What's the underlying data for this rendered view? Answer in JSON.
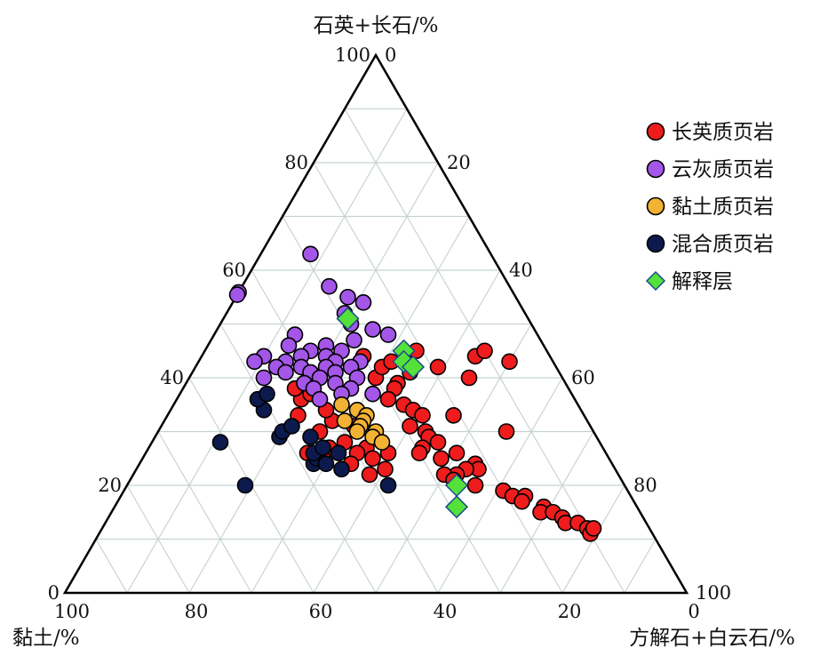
{
  "chart_data": {
    "type": "scatter",
    "subtype": "ternary",
    "axes": {
      "top": {
        "label": "石英+长石/%"
      },
      "left": {
        "label": "黏土/%"
      },
      "right": {
        "label": "方解石+白云石/%"
      }
    },
    "grid": true,
    "grid_step": 10,
    "legend_position": "top-right",
    "ticks": {
      "top_component": [
        "100",
        "80",
        "60",
        "40",
        "20",
        "0"
      ],
      "left_component": [
        "100",
        "80",
        "60",
        "40",
        "20",
        "0"
      ],
      "right_component": [
        "0",
        "20",
        "40",
        "60",
        "80",
        "100"
      ]
    },
    "series": [
      {
        "name": "长英质页岩",
        "color": "#ee1c1c",
        "marker": "circle",
        "points": [
          {
            "qf": 44,
            "cl": 30,
            "carb": 26
          },
          {
            "qf": 39,
            "cl": 27,
            "carb": 34
          },
          {
            "qf": 41,
            "cl": 24,
            "carb": 35
          },
          {
            "qf": 40,
            "cl": 15,
            "carb": 45
          },
          {
            "qf": 33,
            "cl": 21,
            "carb": 46
          },
          {
            "qf": 30,
            "cl": 14,
            "carb": 56
          },
          {
            "qf": 40,
            "cl": 30,
            "carb": 30
          },
          {
            "qf": 38,
            "cl": 28,
            "carb": 34
          },
          {
            "qf": 36,
            "cl": 30,
            "carb": 34
          },
          {
            "qf": 35,
            "cl": 28,
            "carb": 37
          },
          {
            "qf": 34,
            "cl": 27,
            "carb": 39
          },
          {
            "qf": 33,
            "cl": 26,
            "carb": 41
          },
          {
            "qf": 31,
            "cl": 29,
            "carb": 40
          },
          {
            "qf": 30,
            "cl": 27,
            "carb": 43
          },
          {
            "qf": 29,
            "cl": 27,
            "carb": 44
          },
          {
            "qf": 28,
            "cl": 26,
            "carb": 46
          },
          {
            "qf": 27,
            "cl": 29,
            "carb": 44
          },
          {
            "qf": 26,
            "cl": 30,
            "carb": 44
          },
          {
            "qf": 25,
            "cl": 27,
            "carb": 48
          },
          {
            "qf": 26,
            "cl": 24,
            "carb": 50
          },
          {
            "qf": 24,
            "cl": 22,
            "carb": 54
          },
          {
            "qf": 23,
            "cl": 22,
            "carb": 55
          },
          {
            "qf": 23,
            "cl": 24,
            "carb": 53
          },
          {
            "qf": 22,
            "cl": 26,
            "carb": 52
          },
          {
            "qf": 22,
            "cl": 28,
            "carb": 50
          },
          {
            "qf": 21,
            "cl": 27,
            "carb": 52
          },
          {
            "qf": 20,
            "cl": 24,
            "carb": 56
          },
          {
            "qf": 19,
            "cl": 20,
            "carb": 61
          },
          {
            "qf": 18,
            "cl": 19,
            "carb": 63
          },
          {
            "qf": 18,
            "cl": 17,
            "carb": 65
          },
          {
            "qf": 17,
            "cl": 18,
            "carb": 65
          },
          {
            "qf": 16,
            "cl": 15,
            "carb": 69
          },
          {
            "qf": 15,
            "cl": 16,
            "carb": 69
          },
          {
            "qf": 15,
            "cl": 14,
            "carb": 71
          },
          {
            "qf": 14,
            "cl": 13,
            "carb": 73
          },
          {
            "qf": 13,
            "cl": 13,
            "carb": 74
          },
          {
            "qf": 13,
            "cl": 11,
            "carb": 76
          },
          {
            "qf": 12,
            "cl": 10,
            "carb": 78
          },
          {
            "qf": 11,
            "cl": 10,
            "carb": 79
          },
          {
            "qf": 12,
            "cl": 9,
            "carb": 79
          },
          {
            "qf": 26,
            "cl": 35,
            "carb": 39
          },
          {
            "qf": 27,
            "cl": 38,
            "carb": 35
          },
          {
            "qf": 26,
            "cl": 40,
            "carb": 34
          },
          {
            "qf": 28,
            "cl": 41,
            "carb": 31
          },
          {
            "qf": 27,
            "cl": 44,
            "carb": 29
          },
          {
            "qf": 26,
            "cl": 48,
            "carb": 26
          },
          {
            "qf": 25,
            "cl": 46,
            "carb": 29
          },
          {
            "qf": 24,
            "cl": 42,
            "carb": 34
          },
          {
            "qf": 22,
            "cl": 40,
            "carb": 38
          },
          {
            "qf": 25,
            "cl": 38,
            "carb": 37
          },
          {
            "qf": 23,
            "cl": 37,
            "carb": 40
          },
          {
            "qf": 30,
            "cl": 44,
            "carb": 26
          },
          {
            "qf": 33,
            "cl": 46,
            "carb": 21
          },
          {
            "qf": 32,
            "cl": 41,
            "carb": 27
          },
          {
            "qf": 31,
            "cl": 38,
            "carb": 31
          },
          {
            "qf": 34,
            "cl": 41,
            "carb": 25
          },
          {
            "qf": 36,
            "cl": 44,
            "carb": 20
          },
          {
            "qf": 37,
            "cl": 42,
            "carb": 21
          },
          {
            "qf": 38,
            "cl": 44,
            "carb": 18
          },
          {
            "qf": 39,
            "cl": 42,
            "carb": 19
          },
          {
            "qf": 42,
            "cl": 28,
            "carb": 30
          },
          {
            "qf": 43,
            "cl": 26,
            "carb": 31
          },
          {
            "qf": 45,
            "cl": 21,
            "carb": 34
          },
          {
            "qf": 42,
            "cl": 19,
            "carb": 39
          },
          {
            "qf": 44,
            "cl": 12,
            "carb": 44
          },
          {
            "qf": 43,
            "cl": 7,
            "carb": 50
          },
          {
            "qf": 45,
            "cl": 10,
            "carb": 45
          }
        ]
      },
      {
        "name": "云灰质页岩",
        "color": "#a356e8",
        "marker": "circle",
        "points": [
          {
            "qf": 63,
            "cl": 29,
            "carb": 8
          },
          {
            "qf": 57,
            "cl": 45,
            "carb": -2
          },
          {
            "qf": 56,
            "cl": 45,
            "carb": -1
          },
          {
            "qf": 57,
            "cl": 29,
            "carb": 14
          },
          {
            "qf": 55,
            "cl": 27,
            "carb": 18
          },
          {
            "qf": 54,
            "cl": 25,
            "carb": 21
          },
          {
            "qf": 52,
            "cl": 29,
            "carb": 19
          },
          {
            "qf": 50,
            "cl": 29,
            "carb": 21
          },
          {
            "qf": 49,
            "cl": 26,
            "carb": 25
          },
          {
            "qf": 48,
            "cl": 39,
            "carb": 13
          },
          {
            "qf": 48,
            "cl": 24,
            "carb": 28
          },
          {
            "qf": 47,
            "cl": 30,
            "carb": 23
          },
          {
            "qf": 46,
            "cl": 35,
            "carb": 19
          },
          {
            "qf": 46,
            "cl": 41,
            "carb": 13
          },
          {
            "qf": 45,
            "cl": 33,
            "carb": 22
          },
          {
            "qf": 45,
            "cl": 38,
            "carb": 17
          },
          {
            "qf": 44,
            "cl": 36,
            "carb": 20
          },
          {
            "qf": 44,
            "cl": 40,
            "carb": 16
          },
          {
            "qf": 44,
            "cl": 46,
            "carb": 10
          },
          {
            "qf": 43,
            "cl": 31,
            "carb": 26
          },
          {
            "qf": 43,
            "cl": 35,
            "carb": 22
          },
          {
            "qf": 43,
            "cl": 43,
            "carb": 14
          },
          {
            "qf": 43,
            "cl": 48,
            "carb": 9
          },
          {
            "qf": 42,
            "cl": 33,
            "carb": 25
          },
          {
            "qf": 42,
            "cl": 37,
            "carb": 21
          },
          {
            "qf": 42,
            "cl": 41,
            "carb": 17
          },
          {
            "qf": 42,
            "cl": 45,
            "carb": 13
          },
          {
            "qf": 41,
            "cl": 36,
            "carb": 23
          },
          {
            "qf": 41,
            "cl": 40,
            "carb": 19
          },
          {
            "qf": 41,
            "cl": 44,
            "carb": 15
          },
          {
            "qf": 40,
            "cl": 39,
            "carb": 21
          },
          {
            "qf": 40,
            "cl": 33,
            "carb": 27
          },
          {
            "qf": 40,
            "cl": 48,
            "carb": 12
          },
          {
            "qf": 39,
            "cl": 37,
            "carb": 24
          },
          {
            "qf": 39,
            "cl": 42,
            "carb": 19
          },
          {
            "qf": 38,
            "cl": 41,
            "carb": 21
          },
          {
            "qf": 38,
            "cl": 35,
            "carb": 27
          },
          {
            "qf": 37,
            "cl": 37,
            "carb": 26
          },
          {
            "qf": 37,
            "cl": 32,
            "carb": 31
          },
          {
            "qf": 36,
            "cl": 41,
            "carb": 23
          }
        ]
      },
      {
        "name": "黏土质页岩",
        "color": "#f2b233",
        "marker": "circle",
        "points": [
          {
            "qf": 35,
            "cl": 38,
            "carb": 27
          },
          {
            "qf": 34,
            "cl": 36,
            "carb": 30
          },
          {
            "qf": 33,
            "cl": 35,
            "carb": 32
          },
          {
            "qf": 32,
            "cl": 36,
            "carb": 32
          },
          {
            "qf": 31,
            "cl": 37,
            "carb": 32
          },
          {
            "qf": 30,
            "cl": 35,
            "carb": 35
          },
          {
            "qf": 29,
            "cl": 36,
            "carb": 35
          },
          {
            "qf": 28,
            "cl": 35,
            "carb": 37
          },
          {
            "qf": 30,
            "cl": 38,
            "carb": 32
          },
          {
            "qf": 32,
            "cl": 39,
            "carb": 29
          }
        ]
      },
      {
        "name": "混合质页岩",
        "color": "#0d1a4e",
        "marker": "circle",
        "points": [
          {
            "qf": 28,
            "cl": 61,
            "carb": 11
          },
          {
            "qf": 20,
            "cl": 61,
            "carb": 19
          },
          {
            "qf": 29,
            "cl": 51,
            "carb": 20
          },
          {
            "qf": 30,
            "cl": 50,
            "carb": 20
          },
          {
            "qf": 34,
            "cl": 51,
            "carb": 15
          },
          {
            "qf": 31,
            "cl": 48,
            "carb": 21
          },
          {
            "qf": 36,
            "cl": 51,
            "carb": 13
          },
          {
            "qf": 37,
            "cl": 49,
            "carb": 14
          },
          {
            "qf": 24,
            "cl": 48,
            "carb": 28
          },
          {
            "qf": 25,
            "cl": 47,
            "carb": 28
          },
          {
            "qf": 26,
            "cl": 47,
            "carb": 27
          },
          {
            "qf": 24,
            "cl": 46,
            "carb": 30
          },
          {
            "qf": 27,
            "cl": 45,
            "carb": 28
          },
          {
            "qf": 23,
            "cl": 44,
            "carb": 33
          },
          {
            "qf": 20,
            "cl": 38,
            "carb": 42
          },
          {
            "qf": 29,
            "cl": 46,
            "carb": 25
          },
          {
            "qf": 26,
            "cl": 43,
            "carb": 31
          }
        ]
      },
      {
        "name": "解释层",
        "color": "#54e13a",
        "marker": "diamond",
        "points": [
          {
            "qf": 51,
            "cl": 29,
            "carb": 20
          },
          {
            "qf": 45,
            "cl": 23,
            "carb": 32
          },
          {
            "qf": 43,
            "cl": 24,
            "carb": 33
          },
          {
            "qf": 42,
            "cl": 23,
            "carb": 35
          },
          {
            "qf": 20,
            "cl": 27,
            "carb": 53
          },
          {
            "qf": 16,
            "cl": 29,
            "carb": 55
          }
        ]
      }
    ]
  }
}
